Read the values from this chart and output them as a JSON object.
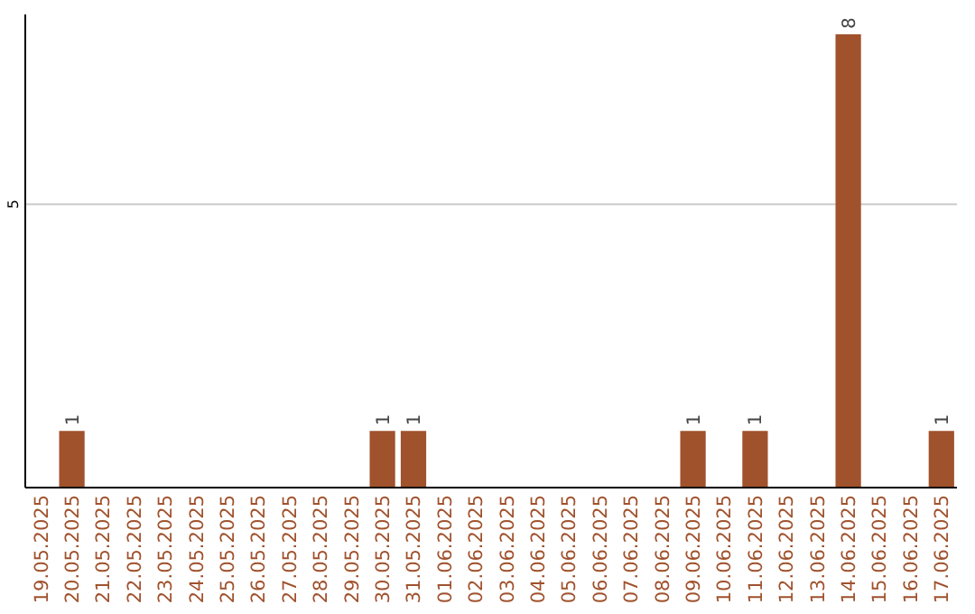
{
  "chart_data": {
    "type": "bar",
    "categories": [
      "19.05.2025",
      "20.05.2025",
      "21.05.2025",
      "22.05.2025",
      "23.05.2025",
      "24.05.2025",
      "25.05.2025",
      "26.05.2025",
      "27.05.2025",
      "28.05.2025",
      "29.05.2025",
      "30.05.2025",
      "31.05.2025",
      "01.06.2025",
      "02.06.2025",
      "03.06.2025",
      "04.06.2025",
      "05.06.2025",
      "06.06.2025",
      "07.06.2025",
      "08.06.2025",
      "09.06.2025",
      "10.06.2025",
      "11.06.2025",
      "12.06.2025",
      "13.06.2025",
      "14.06.2025",
      "15.06.2025",
      "16.06.2025",
      "17.06.2025"
    ],
    "values": [
      0,
      1,
      0,
      0,
      0,
      0,
      0,
      0,
      0,
      0,
      0,
      1,
      1,
      0,
      0,
      0,
      0,
      0,
      0,
      0,
      0,
      1,
      0,
      1,
      0,
      0,
      8,
      0,
      0,
      1
    ],
    "value_labels": [
      null,
      "1",
      null,
      null,
      null,
      null,
      null,
      null,
      null,
      null,
      null,
      "1",
      "1",
      null,
      null,
      null,
      null,
      null,
      null,
      null,
      null,
      "1",
      null,
      "1",
      null,
      null,
      "8",
      null,
      null,
      "1"
    ],
    "color": "#a0522d",
    "ylim": [
      0,
      8.35
    ],
    "yticks": [
      5
    ],
    "grid": "y"
  }
}
